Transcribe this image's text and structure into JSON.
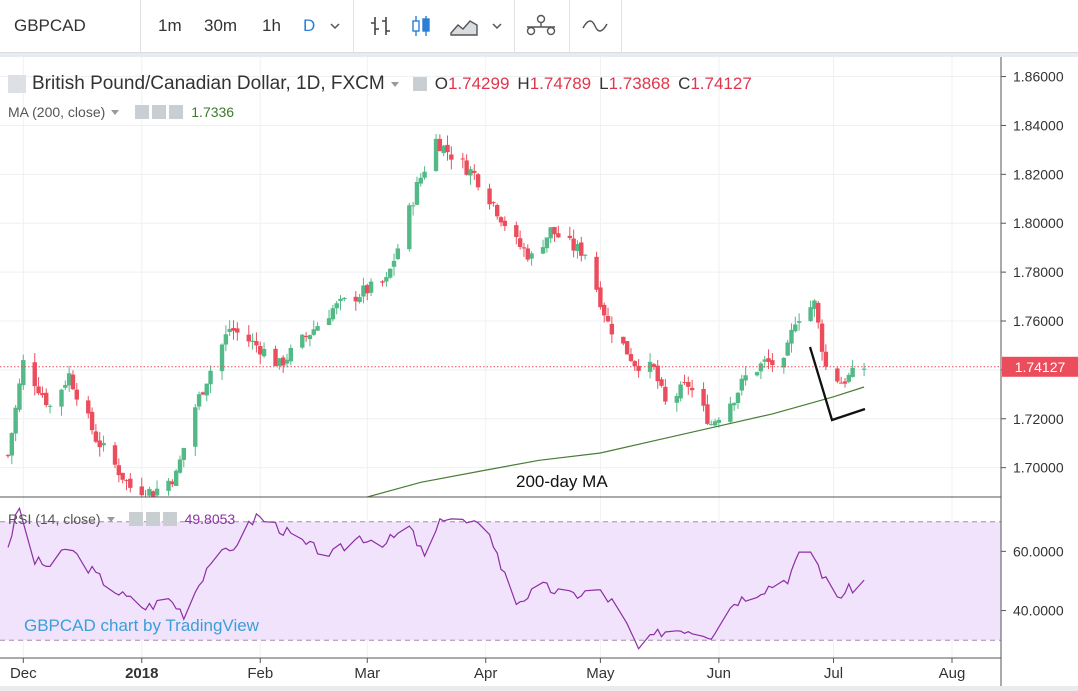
{
  "toolbar": {
    "symbol": "GBPCAD",
    "intervals": [
      {
        "label": "1m",
        "active": false
      },
      {
        "label": "30m",
        "active": false
      },
      {
        "label": "1h",
        "active": false
      },
      {
        "label": "D",
        "active": true
      }
    ]
  },
  "legend": {
    "title": "British Pound/Canadian Dollar, 1D, FXCM",
    "o_label": "O",
    "o_value": "1.74299",
    "h_label": "H",
    "h_value": "1.74789",
    "l_label": "L",
    "l_value": "1.73868",
    "c_label": "C",
    "c_value": "1.74127",
    "ma_name": "MA (200, close)",
    "ma_value": "1.7336",
    "rsi_name": "RSI (14, close)",
    "rsi_value": "49.8053"
  },
  "colors": {
    "up": "#53b987",
    "down": "#eb4d5c",
    "ma": "#4a7c36",
    "rsi": "#8c2fa4",
    "rsi_band": "#f1e3fb",
    "price_tag": "#eb4d5c",
    "watermark": "#3a9fd9"
  },
  "annotations": {
    "ma_label": "200-day MA",
    "watermark": "GBPCAD chart by TradingView"
  },
  "chart_data": [
    {
      "type": "candlestick",
      "title": "British Pound/Canadian Dollar, 1D, FXCM",
      "x_ticks": [
        "Dec",
        "2018",
        "Feb",
        "Mar",
        "Apr",
        "May",
        "Jun",
        "Jul",
        "Aug"
      ],
      "y_ticks": [
        "1.86000",
        "1.84000",
        "1.82000",
        "1.80000",
        "1.78000",
        "1.76000",
        "1.74000",
        "1.72000",
        "1.70000"
      ],
      "ylim": [
        1.688,
        1.868
      ],
      "last_price": "1.74127",
      "ma_series_name": "MA (200, close)",
      "ma_points": [
        [
          "2018-03-01",
          1.688
        ],
        [
          "2018-03-15",
          1.694
        ],
        [
          "2018-04-01",
          1.699
        ],
        [
          "2018-04-15",
          1.703
        ],
        [
          "2018-05-01",
          1.706
        ],
        [
          "2018-05-15",
          1.711
        ],
        [
          "2018-06-01",
          1.717
        ],
        [
          "2018-06-15",
          1.722
        ],
        [
          "2018-07-01",
          1.729
        ],
        [
          "2018-07-09",
          1.733
        ]
      ],
      "anchors": [
        [
          "2017-11-27",
          1.705
        ],
        [
          "2017-12-01",
          1.743
        ],
        [
          "2017-12-08",
          1.725
        ],
        [
          "2017-12-13",
          1.738
        ],
        [
          "2017-12-20",
          1.712
        ],
        [
          "2017-12-29",
          1.692
        ],
        [
          "2018-01-04",
          1.69
        ],
        [
          "2018-01-10",
          1.697
        ],
        [
          "2018-01-15",
          1.725
        ],
        [
          "2018-01-19",
          1.74
        ],
        [
          "2018-01-24",
          1.757
        ],
        [
          "2018-02-01",
          1.749
        ],
        [
          "2018-02-06",
          1.742
        ],
        [
          "2018-02-12",
          1.752
        ],
        [
          "2018-02-20",
          1.765
        ],
        [
          "2018-02-28",
          1.772
        ],
        [
          "2018-03-06",
          1.776
        ],
        [
          "2018-03-09",
          1.79
        ],
        [
          "2018-03-14",
          1.815
        ],
        [
          "2018-03-19",
          1.834
        ],
        [
          "2018-03-23",
          1.828
        ],
        [
          "2018-03-29",
          1.82
        ],
        [
          "2018-04-03",
          1.808
        ],
        [
          "2018-04-09",
          1.792
        ],
        [
          "2018-04-13",
          1.786
        ],
        [
          "2018-04-18",
          1.797
        ],
        [
          "2018-04-24",
          1.79
        ],
        [
          "2018-04-27",
          1.788
        ],
        [
          "2018-05-03",
          1.759
        ],
        [
          "2018-05-10",
          1.743
        ],
        [
          "2018-05-15",
          1.74
        ],
        [
          "2018-05-18",
          1.726
        ],
        [
          "2018-05-24",
          1.734
        ],
        [
          "2018-05-30",
          1.718
        ],
        [
          "2018-06-05",
          1.729
        ],
        [
          "2018-06-08",
          1.737
        ],
        [
          "2018-06-13",
          1.743
        ],
        [
          "2018-06-18",
          1.742
        ],
        [
          "2018-06-21",
          1.761
        ],
        [
          "2018-06-26",
          1.767
        ],
        [
          "2018-06-29",
          1.741
        ],
        [
          "2018-07-03",
          1.735
        ],
        [
          "2018-07-09",
          1.741
        ]
      ],
      "rsi": {
        "series_name": "RSI (14, close)",
        "y_ticks": [
          "60.0000",
          "40.0000"
        ],
        "ylim": [
          24,
          78
        ],
        "band": [
          30,
          70
        ],
        "last_value": "49.8053",
        "points": [
          [
            "2017-11-27",
            62
          ],
          [
            "2017-11-30",
            75
          ],
          [
            "2017-12-03",
            57
          ],
          [
            "2017-12-08",
            55
          ],
          [
            "2017-12-13",
            61
          ],
          [
            "2017-12-20",
            52
          ],
          [
            "2017-12-27",
            45
          ],
          [
            "2018-01-02",
            41
          ],
          [
            "2018-01-08",
            44
          ],
          [
            "2018-01-12",
            39
          ],
          [
            "2018-01-19",
            57
          ],
          [
            "2018-01-24",
            60
          ],
          [
            "2018-01-31",
            72
          ],
          [
            "2018-02-06",
            68
          ],
          [
            "2018-02-13",
            62
          ],
          [
            "2018-02-20",
            59
          ],
          [
            "2018-02-27",
            65
          ],
          [
            "2018-03-06",
            63
          ],
          [
            "2018-03-12",
            68
          ],
          [
            "2018-03-16",
            58
          ],
          [
            "2018-03-21",
            72
          ],
          [
            "2018-03-26",
            70
          ],
          [
            "2018-04-02",
            67
          ],
          [
            "2018-04-05",
            55
          ],
          [
            "2018-04-09",
            43
          ],
          [
            "2018-04-16",
            48
          ],
          [
            "2018-04-23",
            45
          ],
          [
            "2018-04-30",
            47
          ],
          [
            "2018-05-05",
            42
          ],
          [
            "2018-05-11",
            27
          ],
          [
            "2018-05-17",
            33
          ],
          [
            "2018-05-23",
            34
          ],
          [
            "2018-05-30",
            32
          ],
          [
            "2018-06-05",
            43
          ],
          [
            "2018-06-12",
            47
          ],
          [
            "2018-06-19",
            51
          ],
          [
            "2018-06-24",
            63
          ],
          [
            "2018-06-29",
            50
          ],
          [
            "2018-07-01",
            44
          ],
          [
            "2018-07-09",
            50
          ]
        ]
      }
    }
  ]
}
